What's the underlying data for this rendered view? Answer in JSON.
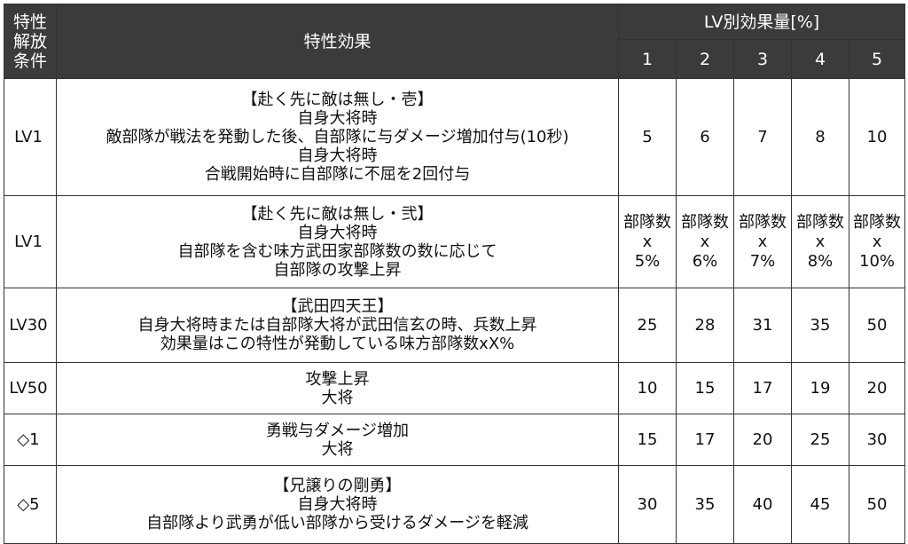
{
  "header": {
    "condition_lines": [
      "特性",
      "解放",
      "条件"
    ],
    "effect": "特性効果",
    "lv_effect": "LV別効果量[%]",
    "levels": [
      "1",
      "2",
      "3",
      "4",
      "5"
    ]
  },
  "rows": [
    {
      "condition": "LV1",
      "effect_lines": [
        "【赴く先に敵は無し・壱】",
        "自身大将時",
        "敵部隊が戦法を発動した後、自部隊に与ダメージ増加付与(10秒)",
        "自身大将時",
        "合戦開始時に自部隊に不屈を2回付与"
      ],
      "values": [
        [
          "5"
        ],
        [
          "6"
        ],
        [
          "7"
        ],
        [
          "8"
        ],
        [
          "10"
        ]
      ]
    },
    {
      "condition": "LV1",
      "effect_lines": [
        "【赴く先に敵は無し・弐】",
        "自身大将時",
        "自部隊を含む味方武田家部隊数の数に応じて",
        "自部隊の攻撃上昇"
      ],
      "values": [
        [
          "部隊数",
          "x",
          "5%"
        ],
        [
          "部隊数",
          "x",
          "6%"
        ],
        [
          "部隊数",
          "x",
          "7%"
        ],
        [
          "部隊数",
          "x",
          "8%"
        ],
        [
          "部隊数",
          "x",
          "10%"
        ]
      ]
    },
    {
      "condition": "LV30",
      "effect_lines": [
        "【武田四天王】",
        "自身大将時または自部隊大将が武田信玄の時、兵数上昇",
        "効果量はこの特性が発動している味方部隊数xX%"
      ],
      "values": [
        [
          "25"
        ],
        [
          "28"
        ],
        [
          "31"
        ],
        [
          "35"
        ],
        [
          "50"
        ]
      ]
    },
    {
      "condition": "LV50",
      "effect_lines": [
        "攻撃上昇",
        "大将"
      ],
      "values": [
        [
          "10"
        ],
        [
          "15"
        ],
        [
          "17"
        ],
        [
          "19"
        ],
        [
          "20"
        ]
      ]
    },
    {
      "condition": "◇1",
      "effect_lines": [
        "勇戦与ダメージ増加",
        "大将"
      ],
      "values": [
        [
          "15"
        ],
        [
          "17"
        ],
        [
          "20"
        ],
        [
          "25"
        ],
        [
          "30"
        ]
      ]
    },
    {
      "condition": "◇5",
      "effect_lines": [
        "【兄譲りの剛勇】",
        "自身大将時",
        "自部隊より武勇が低い部隊から受けるダメージを軽減"
      ],
      "values": [
        [
          "30"
        ],
        [
          "35"
        ],
        [
          "40"
        ],
        [
          "45"
        ],
        [
          "50"
        ]
      ]
    }
  ]
}
